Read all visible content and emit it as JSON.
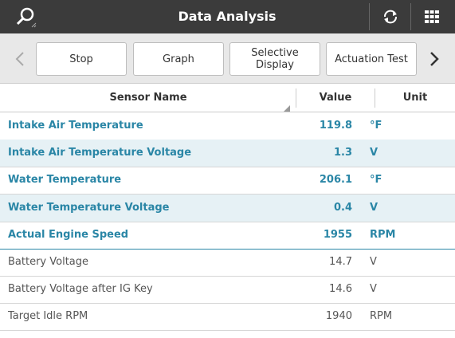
{
  "header": {
    "title": "Data Analysis"
  },
  "toolbar": {
    "buttons": [
      "Stop",
      "Graph",
      "Selective Display",
      "Actuation Test"
    ]
  },
  "table": {
    "columns": [
      "Sensor Name",
      "Value",
      "Unit"
    ],
    "rows": [
      [
        "Intake Air Temperature",
        "119.8",
        "°F"
      ],
      [
        "Intake Air Temperature Voltage",
        "1.3",
        "V"
      ],
      [
        "Water Temperature",
        "206.1",
        "°F"
      ],
      [
        "Water Temperature Voltage",
        "0.4",
        "V"
      ],
      [
        "Actual Engine Speed",
        "1955",
        "RPM"
      ],
      [
        "Battery Voltage",
        "14.7",
        "V"
      ],
      [
        "Battery Voltage after IG Key",
        "14.6",
        "V"
      ],
      [
        "Target Idle RPM",
        "1940",
        "RPM"
      ]
    ]
  }
}
